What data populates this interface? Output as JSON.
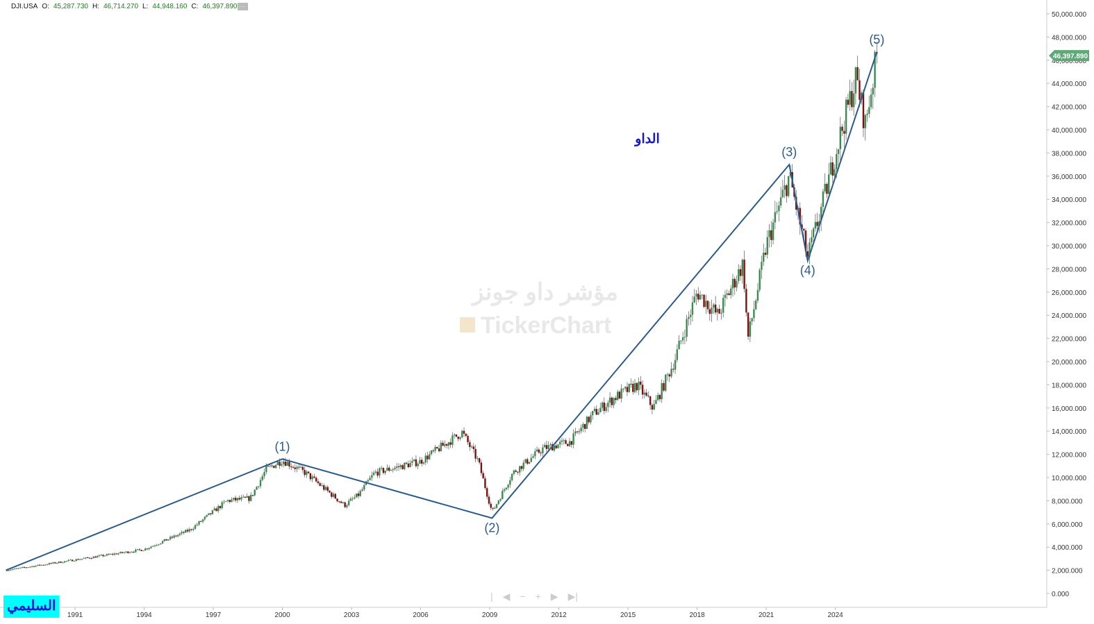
{
  "header": {
    "symbol": "DJI.USA",
    "o_label": "O:",
    "open": "45,287.730",
    "h_label": "H:",
    "high": "46,714.270",
    "l_label": "L:",
    "low": "44,948.160",
    "c_label": "C:",
    "close": "46,397.890",
    "more": "···"
  },
  "brand": "السليمي",
  "title_ar": "الداو",
  "watermark": {
    "line1": "مؤشر داو جونز",
    "line2": "TickerChart"
  },
  "price_tag": "46,397.890",
  "colors": {
    "up": "#3c8a50",
    "down": "#7a1010",
    "wave": "#2a5a8c",
    "tag": "#5fa878"
  },
  "nav": [
    "|",
    "◀",
    "−",
    "+",
    "▶",
    "▶|"
  ],
  "chart_data": {
    "type": "candlestick",
    "x_ticks": [
      "1991",
      "1994",
      "1997",
      "2000",
      "2003",
      "2006",
      "2009",
      "2012",
      "2015",
      "2018",
      "2021",
      "2024"
    ],
    "y_ticks": [
      "0.000",
      "2,000.000",
      "4,000.000",
      "6,000.000",
      "8,000.000",
      "10,000.000",
      "12,000.000",
      "14,000.000",
      "16,000.000",
      "18,000.000",
      "20,000.000",
      "22,000.000",
      "24,000.000",
      "26,000.000",
      "28,000.000",
      "30,000.000",
      "32,000.000",
      "34,000.000",
      "36,000.000",
      "38,000.000",
      "40,000.000",
      "42,000.000",
      "44,000.000",
      "46,000.000",
      "48,000.000",
      "50,000.000"
    ],
    "ylim": [
      0,
      50000
    ],
    "xlim": [
      1988,
      2031.8
    ],
    "price_path": [
      [
        1988,
        2000
      ],
      [
        1991,
        2900
      ],
      [
        1994,
        3800
      ],
      [
        1996,
        5500
      ],
      [
        1997.6,
        8000
      ],
      [
        1998.6,
        8200
      ],
      [
        1999.3,
        10700
      ],
      [
        2000,
        11500
      ],
      [
        2001,
        10400
      ],
      [
        2002.7,
        7600
      ],
      [
        2003.3,
        8500
      ],
      [
        2004,
        10400
      ],
      [
        2006,
        11400
      ],
      [
        2007.8,
        13900
      ],
      [
        2008.5,
        11400
      ],
      [
        2009.1,
        7000
      ],
      [
        2010,
        10400
      ],
      [
        2011.3,
        12500
      ],
      [
        2012.5,
        13100
      ],
      [
        2013.5,
        15500
      ],
      [
        2014.5,
        17000
      ],
      [
        2015.4,
        18000
      ],
      [
        2016.1,
        16000
      ],
      [
        2017,
        20000
      ],
      [
        2018,
        26000
      ],
      [
        2018.9,
        24000
      ],
      [
        2020,
        28500
      ],
      [
        2020.2,
        21900
      ],
      [
        2021,
        30000
      ],
      [
        2022,
        36000
      ],
      [
        2022.8,
        29000
      ],
      [
        2023.5,
        34000
      ],
      [
        2024,
        38000
      ],
      [
        2024.9,
        44500
      ],
      [
        2025.3,
        40500
      ],
      [
        2025.8,
        46397.89
      ]
    ],
    "elliott_waves": [
      {
        "label": "",
        "year": 1988,
        "value": 2000
      },
      {
        "label": "(1)",
        "year": 2000,
        "value": 11600
      },
      {
        "label": "(2)",
        "year": 2009.1,
        "value": 6500
      },
      {
        "label": "(3)",
        "year": 2022,
        "value": 37000
      },
      {
        "label": "(4)",
        "year": 2022.8,
        "value": 28700
      },
      {
        "label": "(5)",
        "year": 2025.8,
        "value": 46700
      }
    ],
    "last_value": 46397.89
  }
}
